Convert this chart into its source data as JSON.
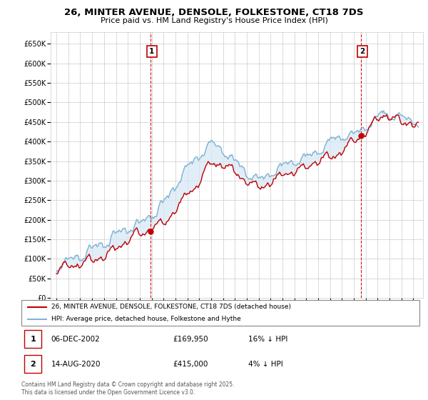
{
  "title": "26, MINTER AVENUE, DENSOLE, FOLKESTONE, CT18 7DS",
  "subtitle": "Price paid vs. HM Land Registry's House Price Index (HPI)",
  "yticks": [
    0,
    50000,
    100000,
    150000,
    200000,
    250000,
    300000,
    350000,
    400000,
    450000,
    500000,
    550000,
    600000,
    650000
  ],
  "ytick_labels": [
    "£0",
    "£50K",
    "£100K",
    "£150K",
    "£200K",
    "£250K",
    "£300K",
    "£350K",
    "£400K",
    "£450K",
    "£500K",
    "£550K",
    "£600K",
    "£650K"
  ],
  "hpi_color": "#7fb3d3",
  "price_color": "#c00000",
  "fill_color": "#d6e8f5",
  "marker1_year": 2002.92,
  "marker1_price": 169950,
  "marker2_year": 2020.62,
  "marker2_price": 415000,
  "legend_line1": "26, MINTER AVENUE, DENSOLE, FOLKESTONE, CT18 7DS (detached house)",
  "legend_line2": "HPI: Average price, detached house, Folkestone and Hythe",
  "table_row1": [
    "1",
    "06-DEC-2002",
    "£169,950",
    "16% ↓ HPI"
  ],
  "table_row2": [
    "2",
    "14-AUG-2020",
    "£415,000",
    "4% ↓ HPI"
  ],
  "footnote": "Contains HM Land Registry data © Crown copyright and database right 2025.\nThis data is licensed under the Open Government Licence v3.0.",
  "xmin": 1994.5,
  "xmax": 2025.8,
  "ymin": 0,
  "ymax": 680000
}
